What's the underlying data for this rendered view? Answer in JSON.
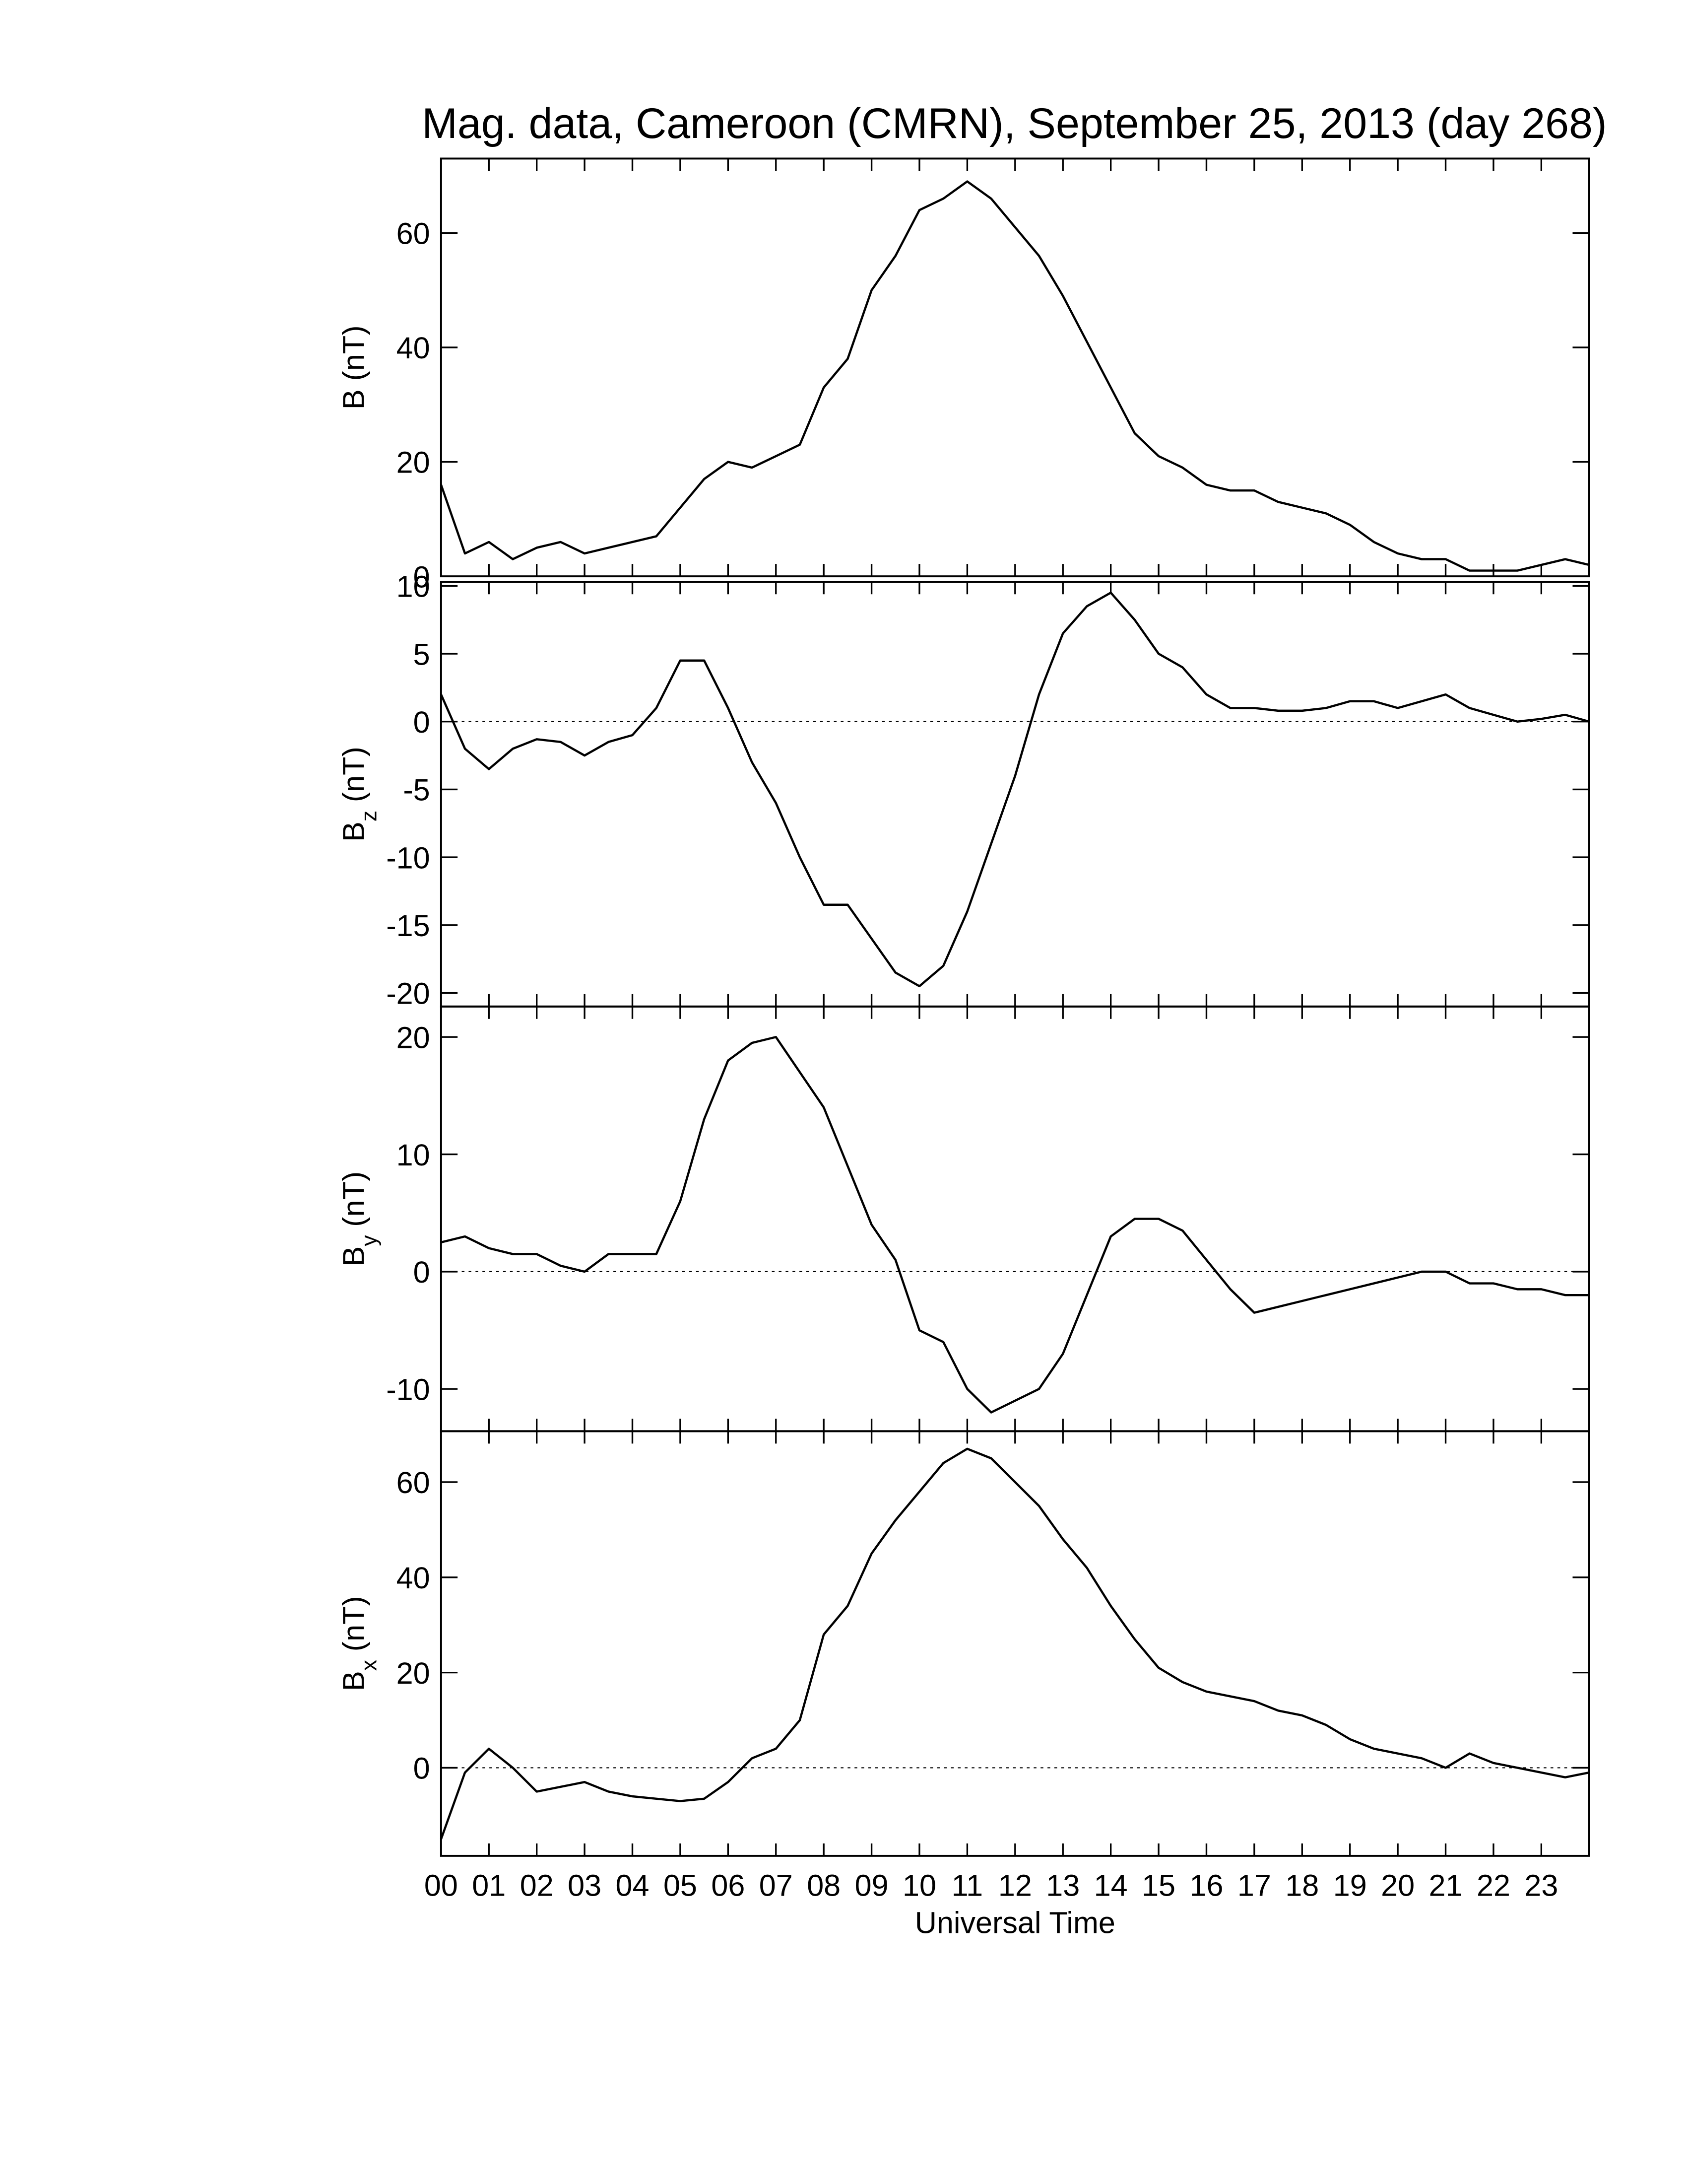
{
  "chart_data": {
    "type": "line",
    "title": "Mag. data, Cameroon (CMRN), September 25, 2013 (day 268)",
    "xlabel": "Universal Time",
    "xlim": [
      0,
      24
    ],
    "xticks": [
      {
        "value": 0,
        "label": "00"
      },
      {
        "value": 1,
        "label": "01"
      },
      {
        "value": 2,
        "label": "02"
      },
      {
        "value": 3,
        "label": "03"
      },
      {
        "value": 4,
        "label": "04"
      },
      {
        "value": 5,
        "label": "05"
      },
      {
        "value": 6,
        "label": "06"
      },
      {
        "value": 7,
        "label": "07"
      },
      {
        "value": 8,
        "label": "08"
      },
      {
        "value": 9,
        "label": "09"
      },
      {
        "value": 10,
        "label": "10"
      },
      {
        "value": 11,
        "label": "11"
      },
      {
        "value": 12,
        "label": "12"
      },
      {
        "value": 13,
        "label": "13"
      },
      {
        "value": 14,
        "label": "14"
      },
      {
        "value": 15,
        "label": "15"
      },
      {
        "value": 16,
        "label": "16"
      },
      {
        "value": 17,
        "label": "17"
      },
      {
        "value": 18,
        "label": "18"
      },
      {
        "value": 19,
        "label": "19"
      },
      {
        "value": 20,
        "label": "20"
      },
      {
        "value": 21,
        "label": "21"
      },
      {
        "value": 22,
        "label": "22"
      },
      {
        "value": 23,
        "label": "23"
      }
    ],
    "x": [
      0,
      0.5,
      1,
      1.5,
      2,
      2.5,
      3,
      3.5,
      4,
      4.5,
      5,
      5.5,
      6,
      6.5,
      7,
      7.5,
      8,
      8.5,
      9,
      9.5,
      10,
      10.5,
      11,
      11.5,
      12,
      12.5,
      13,
      13.5,
      14,
      14.5,
      15,
      15.5,
      16,
      16.5,
      17,
      17.5,
      18,
      18.5,
      19,
      19.5,
      20,
      20.5,
      21,
      21.5,
      22,
      22.5,
      23,
      23.5,
      24
    ],
    "color": "#000000",
    "panels": [
      {
        "ylabel": "B (nT)",
        "ylim": [
          0,
          73
        ],
        "yticks": [
          0,
          20,
          40,
          60
        ],
        "zero_line": false,
        "values": [
          16,
          4,
          6,
          3,
          5,
          6,
          4,
          5,
          6,
          7,
          12,
          17,
          20,
          19,
          21,
          23,
          33,
          38,
          50,
          56,
          64,
          66,
          69,
          66,
          61,
          56,
          49,
          41,
          33,
          25,
          21,
          19,
          16,
          15,
          15,
          13,
          12,
          11,
          9,
          6,
          4,
          3,
          3,
          1,
          1,
          1,
          2,
          3,
          2
        ]
      },
      {
        "ylabel": "B",
        "ylabel_subscript": "z",
        "ylabel_unit": "(nT)",
        "ylim": [
          -21,
          10.3
        ],
        "yticks": [
          -20,
          -15,
          -10,
          -5,
          0,
          5,
          10
        ],
        "zero_line": true,
        "values": [
          2,
          -2,
          -3.5,
          -2,
          -1.3,
          -1.5,
          -2.5,
          -1.5,
          -1,
          1,
          4.5,
          4.5,
          1,
          -3,
          -6,
          -10,
          -13.5,
          -13.5,
          -16,
          -18.5,
          -19.5,
          -18,
          -14,
          -9,
          -4,
          2,
          6.5,
          8.5,
          9.5,
          7.5,
          5,
          4,
          2,
          1,
          1,
          0.8,
          0.8,
          1,
          1.5,
          1.5,
          1,
          1.5,
          2,
          1,
          0.5,
          0,
          0.2,
          0.5,
          0
        ]
      },
      {
        "ylabel": "B",
        "ylabel_subscript": "y",
        "ylabel_unit": "(nT)",
        "ylim": [
          -13.6,
          22.6
        ],
        "yticks": [
          -10,
          0,
          10,
          20
        ],
        "zero_line": true,
        "values": [
          2.5,
          3,
          2,
          1.5,
          1.5,
          0.5,
          0,
          1.5,
          1.5,
          1.5,
          6,
          13,
          18,
          19.5,
          20,
          17,
          14,
          9,
          4,
          1,
          -5,
          -6,
          -10,
          -12,
          -11,
          -10,
          -7,
          -2,
          3,
          4.5,
          4.5,
          3.5,
          1,
          -1.5,
          -3.5,
          -3,
          -2.5,
          -2,
          -1.5,
          -1,
          -0.5,
          0,
          0,
          -1,
          -1,
          -1.5,
          -1.5,
          -2,
          -2
        ]
      },
      {
        "ylabel": "B",
        "ylabel_subscript": "x",
        "ylabel_unit": "(nT)",
        "ylim": [
          -18.5,
          70.7
        ],
        "yticks": [
          0,
          20,
          40,
          60
        ],
        "zero_line": true,
        "values": [
          -15,
          -1,
          4,
          0,
          -5,
          -4,
          -3,
          -5,
          -6,
          -6.5,
          -7,
          -6.5,
          -3,
          2,
          4,
          10,
          28,
          34,
          45,
          52,
          58,
          64,
          67,
          65,
          60,
          55,
          48,
          42,
          34,
          27,
          21,
          18,
          16,
          15,
          14,
          12,
          11,
          9,
          6,
          4,
          3,
          2,
          0,
          3,
          1,
          0,
          -1,
          -2,
          -1
        ]
      }
    ]
  }
}
